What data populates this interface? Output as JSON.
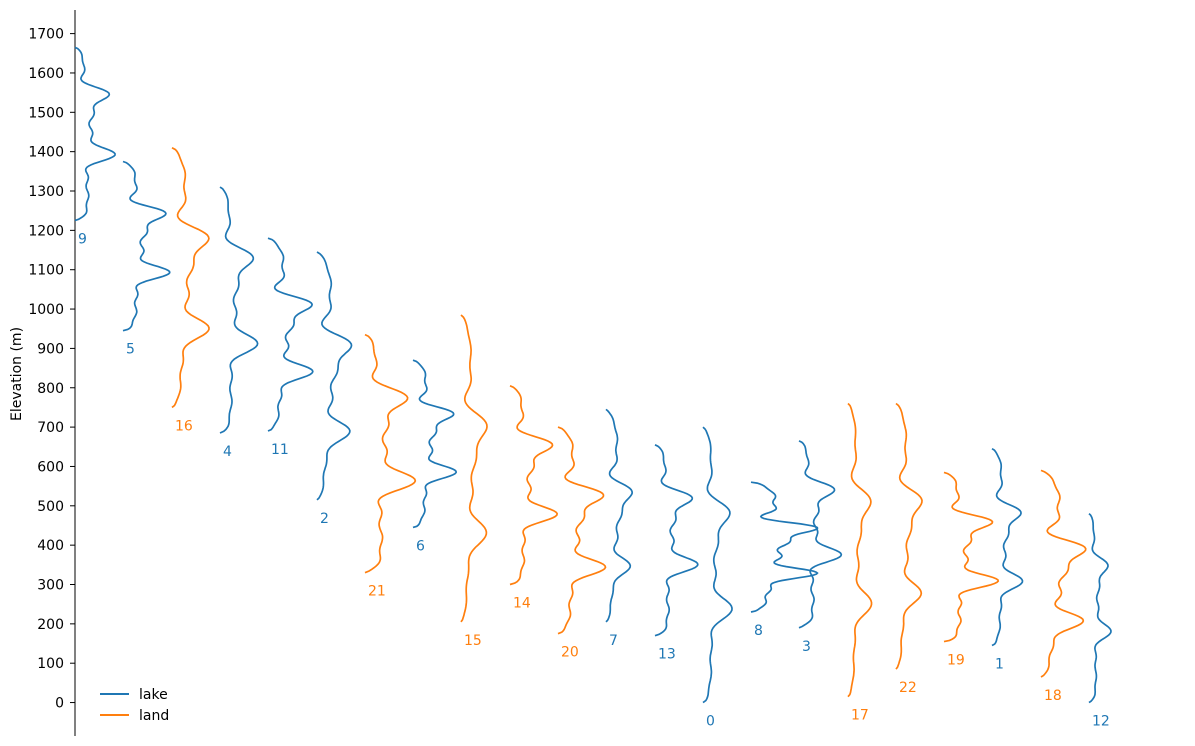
{
  "colors": {
    "lake": "#1f77b4",
    "land": "#ff7f0e",
    "axis": "#000000"
  },
  "chart_data": {
    "type": "line",
    "title": "",
    "xlabel": "",
    "ylabel": "Elevation (m)",
    "ylim": [
      -85,
      1760
    ],
    "yticks": [
      0,
      100,
      200,
      300,
      400,
      500,
      600,
      700,
      800,
      900,
      1000,
      1100,
      1200,
      1300,
      1400,
      1500,
      1600,
      1700
    ],
    "grid": false,
    "legend": {
      "position": "lower-left",
      "entries": [
        {
          "label": "lake",
          "type": "lake"
        },
        {
          "label": "land",
          "type": "land"
        }
      ]
    },
    "series": [
      {
        "name": "9",
        "type": "lake",
        "x_index": 0,
        "range": [
          1225,
          1665
        ],
        "amplitude": 40,
        "phase": 0.3
      },
      {
        "name": "5",
        "type": "lake",
        "x_index": 1,
        "range": [
          945,
          1375
        ],
        "amplitude": 48,
        "phase": 1.1
      },
      {
        "name": "16",
        "type": "land",
        "x_index": 2,
        "range": [
          750,
          1410
        ],
        "amplitude": 40,
        "phase": 2.0
      },
      {
        "name": "4",
        "type": "lake",
        "x_index": 3,
        "range": [
          685,
          1310
        ],
        "amplitude": 38,
        "phase": 0.7
      },
      {
        "name": "11",
        "type": "lake",
        "x_index": 4,
        "range": [
          690,
          1180
        ],
        "amplitude": 48,
        "phase": 1.9
      },
      {
        "name": "2",
        "type": "lake",
        "x_index": 5,
        "range": [
          515,
          1145
        ],
        "amplitude": 37,
        "phase": 2.6
      },
      {
        "name": "21",
        "type": "land",
        "x_index": 6,
        "range": [
          330,
          935
        ],
        "amplitude": 50,
        "phase": 0.2
      },
      {
        "name": "6",
        "type": "lake",
        "x_index": 7,
        "range": [
          445,
          870
        ],
        "amplitude": 45,
        "phase": 1.4
      },
      {
        "name": "15",
        "type": "land",
        "x_index": 8,
        "range": [
          205,
          985
        ],
        "amplitude": 28,
        "phase": 2.3
      },
      {
        "name": "14",
        "type": "land",
        "x_index": 9,
        "range": [
          300,
          805
        ],
        "amplitude": 48,
        "phase": 0.9
      },
      {
        "name": "20",
        "type": "land",
        "x_index": 10,
        "range": [
          175,
          700
        ],
        "amplitude": 50,
        "phase": 1.6
      },
      {
        "name": "7",
        "type": "lake",
        "x_index": 11,
        "range": [
          205,
          745
        ],
        "amplitude": 28,
        "phase": 2.9
      },
      {
        "name": "13",
        "type": "lake",
        "x_index": 12,
        "range": [
          170,
          655
        ],
        "amplitude": 43,
        "phase": 0.5
      },
      {
        "name": "0",
        "type": "lake",
        "x_index": 13,
        "range": [
          0,
          700
        ],
        "amplitude": 30,
        "phase": 1.2
      },
      {
        "name": "8",
        "type": "lake",
        "x_index": 14,
        "range": [
          230,
          560
        ],
        "amplitude": 72,
        "phase": 2.1
      },
      {
        "name": "3",
        "type": "lake",
        "x_index": 15,
        "range": [
          190,
          665
        ],
        "amplitude": 42,
        "phase": 0.1
      },
      {
        "name": "17",
        "type": "land",
        "x_index": 16,
        "range": [
          15,
          760
        ],
        "amplitude": 25,
        "phase": 1.7
      },
      {
        "name": "22",
        "type": "land",
        "x_index": 17,
        "range": [
          85,
          760
        ],
        "amplitude": 28,
        "phase": 2.4
      },
      {
        "name": "19",
        "type": "land",
        "x_index": 18,
        "range": [
          155,
          585
        ],
        "amplitude": 55,
        "phase": 0.8
      },
      {
        "name": "1",
        "type": "lake",
        "x_index": 19,
        "range": [
          145,
          645
        ],
        "amplitude": 32,
        "phase": 1.5
      },
      {
        "name": "18",
        "type": "land",
        "x_index": 20,
        "range": [
          65,
          590
        ],
        "amplitude": 48,
        "phase": 2.7
      },
      {
        "name": "12",
        "type": "lake",
        "x_index": 21,
        "range": [
          0,
          480
        ],
        "amplitude": 22,
        "phase": 0.4
      }
    ]
  }
}
